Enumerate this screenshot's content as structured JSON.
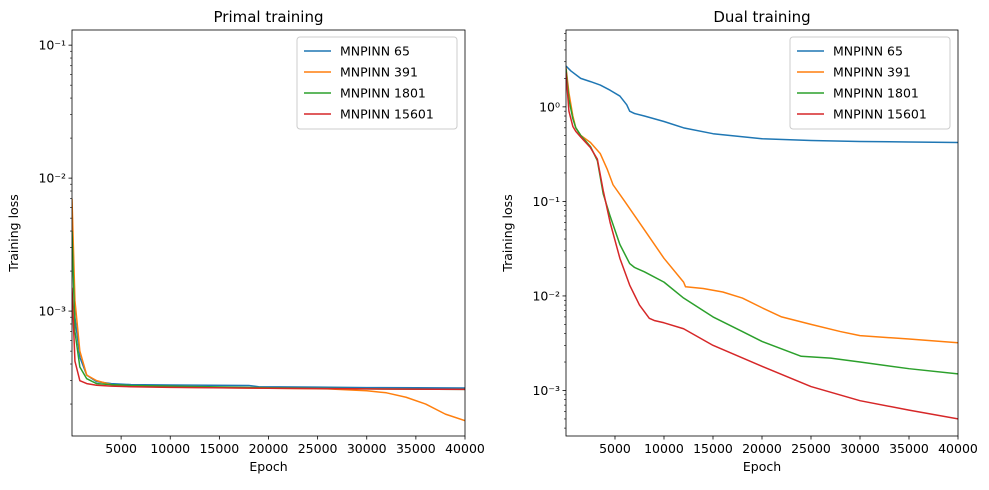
{
  "chart_data": [
    {
      "type": "line",
      "title": "Primal training",
      "xlabel": "Epoch",
      "ylabel": "Training loss",
      "yscale": "log",
      "xlim": [
        1,
        40000
      ],
      "ylim": [
        0.000115,
        0.13
      ],
      "xticks": [
        5000,
        10000,
        15000,
        20000,
        25000,
        30000,
        35000,
        40000
      ],
      "xtick_labels": [
        "5000",
        "10000",
        "15000",
        "20000",
        "25000",
        "30000",
        "35000",
        "40000"
      ],
      "yticks": [
        0.001,
        0.01,
        0.1
      ],
      "ytick_labels": [
        "10⁻³",
        "10⁻²",
        "10⁻¹"
      ],
      "legend_position": "top-right",
      "grid": false,
      "series": [
        {
          "name": "MNPINN 65",
          "color": "#1f77b4",
          "x": [
            1,
            300,
            800,
            1500,
            2500,
            4000,
            6000,
            10000,
            18000,
            19000,
            25000,
            30000,
            35000,
            40000
          ],
          "y": [
            0.006,
            0.0009,
            0.00045,
            0.00033,
            0.000295,
            0.000285,
            0.00028,
            0.000278,
            0.000276,
            0.00027,
            0.000268,
            0.000266,
            0.000265,
            0.000264
          ]
        },
        {
          "name": "MNPINN 391",
          "color": "#ff7f0e",
          "x": [
            1,
            300,
            800,
            1500,
            2500,
            4000,
            6000,
            10000,
            20000,
            26000,
            30000,
            32000,
            34000,
            36000,
            38000,
            40000
          ],
          "y": [
            0.007,
            0.0012,
            0.0005,
            0.00033,
            0.0003,
            0.00028,
            0.000272,
            0.000268,
            0.000263,
            0.00026,
            0.000252,
            0.000243,
            0.000225,
            0.0002,
            0.000168,
            0.00015
          ]
        },
        {
          "name": "MNPINN 1801",
          "color": "#2ca02c",
          "x": [
            1,
            300,
            800,
            1500,
            2500,
            4000,
            6000,
            10000,
            20000,
            30000,
            40000
          ],
          "y": [
            0.004,
            0.0007,
            0.00038,
            0.00031,
            0.000285,
            0.00028,
            0.000276,
            0.000273,
            0.000265,
            0.00026,
            0.000258
          ]
        },
        {
          "name": "MNPINN 15601",
          "color": "#d62728",
          "x": [
            1,
            300,
            800,
            1500,
            2500,
            4000,
            6000,
            10000,
            20000,
            30000,
            40000
          ],
          "y": [
            0.0015,
            0.00042,
            0.0003,
            0.000285,
            0.000277,
            0.000273,
            0.00027,
            0.000267,
            0.000263,
            0.00026,
            0.000258
          ]
        }
      ]
    },
    {
      "type": "line",
      "title": "Dual training",
      "xlabel": "Epoch",
      "ylabel": "Training loss",
      "yscale": "log",
      "xlim": [
        1,
        40000
      ],
      "ylim": [
        0.00033,
        6.5
      ],
      "xticks": [
        5000,
        10000,
        15000,
        20000,
        25000,
        30000,
        35000,
        40000
      ],
      "xtick_labels": [
        "5000",
        "10000",
        "15000",
        "20000",
        "25000",
        "30000",
        "35000",
        "40000"
      ],
      "yticks": [
        0.001,
        0.01,
        0.1,
        1
      ],
      "ytick_labels": [
        "10⁻³",
        "10⁻²",
        "10⁻¹",
        "10⁰"
      ],
      "legend_position": "top-right",
      "grid": false,
      "series": [
        {
          "name": "MNPINN 65",
          "color": "#1f77b4",
          "x": [
            1,
            500,
            1500,
            2500,
            3500,
            4500,
            5500,
            6200,
            6500,
            7000,
            8000,
            10000,
            12000,
            15000,
            20000,
            25000,
            30000,
            35000,
            40000
          ],
          "y": [
            2.7,
            2.4,
            2.0,
            1.85,
            1.7,
            1.5,
            1.3,
            1.05,
            0.9,
            0.85,
            0.8,
            0.7,
            0.6,
            0.52,
            0.46,
            0.44,
            0.43,
            0.425,
            0.42
          ]
        },
        {
          "name": "MNPINN 391",
          "color": "#ff7f0e",
          "x": [
            1,
            300,
            700,
            1000,
            1500,
            2500,
            3500,
            4200,
            4800,
            6000,
            8000,
            10000,
            12000,
            12200,
            14000,
            16000,
            18000,
            20000,
            22000,
            25000,
            28000,
            30000,
            35000,
            40000
          ],
          "y": [
            2.6,
            1.4,
            0.8,
            0.6,
            0.5,
            0.42,
            0.32,
            0.22,
            0.15,
            0.1,
            0.05,
            0.025,
            0.014,
            0.0125,
            0.012,
            0.011,
            0.0095,
            0.0075,
            0.006,
            0.005,
            0.0042,
            0.0038,
            0.0035,
            0.0032
          ]
        },
        {
          "name": "MNPINN 1801",
          "color": "#2ca02c",
          "x": [
            1,
            300,
            700,
            1000,
            1500,
            2500,
            3200,
            3800,
            4500,
            5500,
            6500,
            7000,
            8000,
            10000,
            12000,
            15000,
            18000,
            20000,
            24000,
            27000,
            30000,
            35000,
            40000
          ],
          "y": [
            2.5,
            1.2,
            0.75,
            0.6,
            0.5,
            0.38,
            0.27,
            0.12,
            0.07,
            0.035,
            0.022,
            0.02,
            0.018,
            0.014,
            0.0095,
            0.006,
            0.0042,
            0.0033,
            0.0023,
            0.0022,
            0.002,
            0.0017,
            0.0015
          ]
        },
        {
          "name": "MNPINN 15601",
          "color": "#d62728",
          "x": [
            1,
            300,
            700,
            1000,
            1500,
            2500,
            3200,
            3800,
            4500,
            5500,
            6500,
            7500,
            8500,
            9000,
            10000,
            12000,
            15000,
            20000,
            25000,
            30000,
            35000,
            40000
          ],
          "y": [
            2.3,
            0.9,
            0.62,
            0.55,
            0.48,
            0.37,
            0.28,
            0.13,
            0.06,
            0.025,
            0.013,
            0.008,
            0.0058,
            0.0055,
            0.0052,
            0.0045,
            0.003,
            0.0018,
            0.0011,
            0.00078,
            0.00062,
            0.0005
          ]
        }
      ]
    }
  ]
}
